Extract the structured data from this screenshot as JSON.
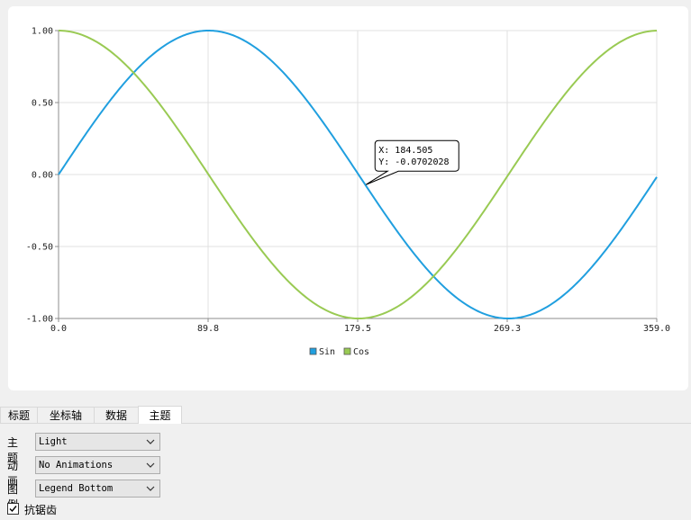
{
  "chart_data": {
    "type": "line",
    "xlim": [
      0.0,
      359.0
    ],
    "ylim": [
      -1.0,
      1.0
    ],
    "x_ticks": [
      "0.0",
      "89.8",
      "179.5",
      "269.3",
      "359.0"
    ],
    "y_ticks": [
      "1.00",
      "0.50",
      "0.00",
      "-0.50",
      "-1.00"
    ],
    "grid": true,
    "legend_position": "bottom",
    "series": [
      {
        "name": "Sin",
        "function": "sin",
        "color": "#209fdf"
      },
      {
        "name": "Cos",
        "function": "cos",
        "color": "#99ca53"
      }
    ],
    "tooltip": {
      "x_value": 184.505,
      "y_value": -0.0702028,
      "line1": "X: 184.505",
      "line2": "Y: -0.0702028"
    }
  },
  "tabs": [
    {
      "label": "标题",
      "active": false
    },
    {
      "label": "坐标轴",
      "active": false
    },
    {
      "label": "数据",
      "active": false
    },
    {
      "label": "主题",
      "active": true
    }
  ],
  "form": {
    "theme_label": "主题",
    "theme_value": "Light",
    "animation_label": "动画",
    "animation_value": "No Animations",
    "legend_label": "图例",
    "legend_value": "Legend Bottom",
    "antialias_label": "抗锯齿",
    "antialias_checked": true
  },
  "colors": {
    "grid": "#e0e0e0",
    "axis": "#8c8c8c"
  }
}
